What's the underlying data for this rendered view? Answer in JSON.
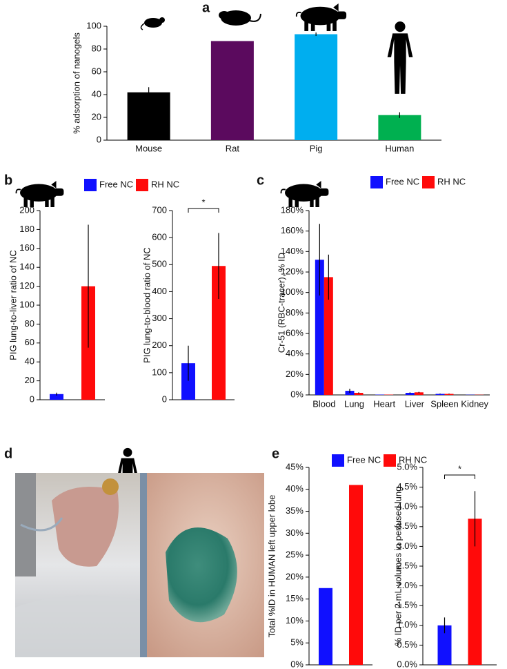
{
  "panel_labels": [
    "a",
    "b",
    "c",
    "d",
    "e"
  ],
  "chart_data": [
    {
      "type": "bar",
      "ylabel": "% adsorption of nanogels",
      "categories": [
        "Mouse",
        "Rat",
        "Pig",
        "Human"
      ],
      "values": [
        42,
        87,
        93,
        22
      ],
      "errors": [
        4.5,
        0,
        1.5,
        2.5
      ],
      "colors": [
        "#000000",
        "#5b0a5e",
        "#00aeef",
        "#00b050"
      ],
      "ylim": [
        0,
        100
      ],
      "yticks": [
        0,
        20,
        40,
        60,
        80,
        100
      ]
    },
    {
      "type": "bar",
      "ylabel": "PIG lung-to-liver ratio of NC",
      "categories": [
        null
      ],
      "series": [
        {
          "name": "Free NC",
          "color": "#1010ff",
          "values": [
            6
          ],
          "errors": [
            1.5
          ]
        },
        {
          "name": "RH NC",
          "color": "#ff0a0a",
          "values": [
            120
          ],
          "errors": [
            65
          ]
        }
      ],
      "ylim": [
        0,
        200
      ],
      "yticks": [
        0,
        20,
        40,
        60,
        80,
        100,
        120,
        140,
        160,
        180,
        200
      ]
    },
    {
      "type": "bar",
      "ylabel": "PIG lung-to-blood ratio of NC",
      "annotation": "*",
      "categories": [
        null
      ],
      "series": [
        {
          "color": "#1010ff",
          "values": [
            135
          ],
          "errors": [
            65
          ]
        },
        {
          "color": "#ff0a0a",
          "values": [
            495
          ],
          "errors": [
            122
          ]
        }
      ],
      "ylim": [
        0,
        700
      ],
      "yticks": [
        0,
        100,
        200,
        300,
        400,
        500,
        600,
        700
      ]
    },
    {
      "type": "bar",
      "ylabel": "Cr-51 (RBC-tracer), % ID",
      "categories": [
        "Blood",
        "Lung",
        "Heart",
        "Liver",
        "Spleen",
        "Kidney"
      ],
      "series": [
        {
          "name": "Free NC",
          "color": "#1010ff",
          "values": [
            132,
            4,
            0.3,
            2,
            1,
            0.2
          ],
          "errors": [
            35,
            2,
            0,
            0.5,
            0.3,
            0
          ]
        },
        {
          "name": "RH NC",
          "color": "#ff0a0a",
          "values": [
            115,
            2,
            0.3,
            2.5,
            1,
            0.2
          ],
          "errors": [
            22,
            0.5,
            0,
            0.5,
            0.3,
            0
          ]
        }
      ],
      "ylim": [
        0,
        180
      ],
      "yticks": [
        {
          "value": 0,
          "label": "0%"
        },
        {
          "value": 20,
          "label": "20%"
        },
        {
          "value": 40,
          "label": "40%"
        },
        {
          "value": 60,
          "label": "60%"
        },
        {
          "value": 80,
          "label": "80%"
        },
        {
          "value": 100,
          "label": "100%"
        },
        {
          "value": 120,
          "label": "120%"
        },
        {
          "value": 140,
          "label": "140%"
        },
        {
          "value": 160,
          "label": "160%"
        },
        {
          "value": 180,
          "label": "180%"
        }
      ]
    },
    {
      "type": "bar",
      "ylabel": "Total %ID in HUMAN left upper lobe",
      "categories": [
        null
      ],
      "series": [
        {
          "name": "Free NC",
          "color": "#1010ff",
          "values": [
            17.5
          ]
        },
        {
          "name": "RH NC",
          "color": "#ff0a0a",
          "values": [
            41
          ]
        }
      ],
      "ylim": [
        0,
        45
      ],
      "yticks": [
        {
          "value": 0,
          "label": "0%"
        },
        {
          "value": 5,
          "label": "5%"
        },
        {
          "value": 10,
          "label": "10%"
        },
        {
          "value": 15,
          "label": "15%"
        },
        {
          "value": 20,
          "label": "20%"
        },
        {
          "value": 25,
          "label": "25%"
        },
        {
          "value": 30,
          "label": "30%"
        },
        {
          "value": 35,
          "label": "35%"
        },
        {
          "value": 40,
          "label": "40%"
        },
        {
          "value": 45,
          "label": "45%"
        }
      ]
    },
    {
      "type": "bar",
      "ylabel": "% ID per 2 mL volumes in perfused lung",
      "annotation": "*",
      "categories": [
        null
      ],
      "series": [
        {
          "color": "#1010ff",
          "values": [
            1.0
          ],
          "errors": [
            0.2
          ]
        },
        {
          "color": "#ff0a0a",
          "values": [
            3.7
          ],
          "errors": [
            0.7
          ]
        }
      ],
      "ylim": [
        0,
        5
      ],
      "yticks": [
        {
          "value": 0,
          "label": "0.0%"
        },
        {
          "value": 0.5,
          "label": "0.5%"
        },
        {
          "value": 1,
          "label": "1.0%"
        },
        {
          "value": 1.5,
          "label": "1.5%"
        },
        {
          "value": 2,
          "label": "2.0%"
        },
        {
          "value": 2.5,
          "label": "2.5%"
        },
        {
          "value": 3,
          "label": "3.0%"
        },
        {
          "value": 3.5,
          "label": "3.5%"
        },
        {
          "value": 4,
          "label": "4.0%"
        },
        {
          "value": 4.5,
          "label": "4.5%"
        },
        {
          "value": 5,
          "label": "5.0%"
        }
      ]
    }
  ]
}
